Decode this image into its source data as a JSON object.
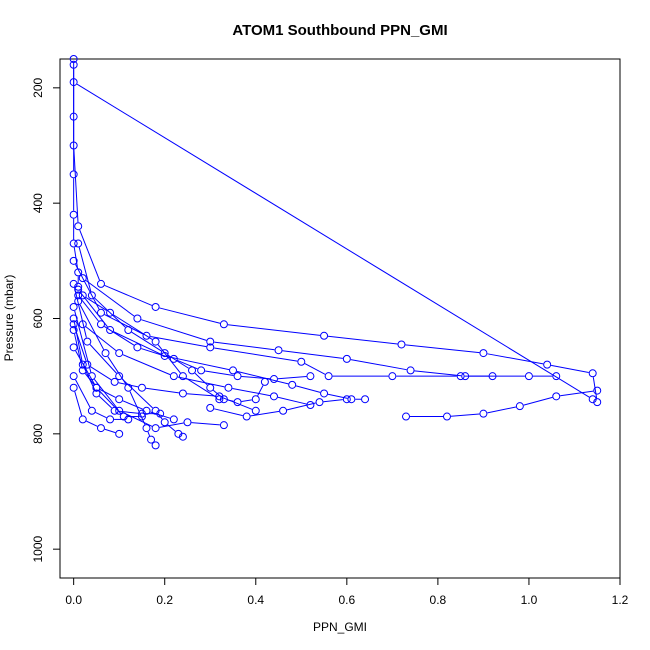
{
  "chart_data": {
    "type": "scatter",
    "title": "ATOM1 Southbound PPN_GMI",
    "xlabel": "PPN_GMI",
    "ylabel": "Pressure (mbar)",
    "xlim": [
      -0.03,
      1.2
    ],
    "ylim": [
      150,
      1050
    ],
    "y_reversed": true,
    "x_ticks": [
      "0.0",
      "0.2",
      "0.4",
      "0.6",
      "0.8",
      "1.0",
      "1.2"
    ],
    "y_ticks": [
      "200",
      "400",
      "600",
      "800",
      "1000"
    ],
    "marker": "open-circle",
    "series_color": "#0000ff",
    "grid": false,
    "series": [
      {
        "x": [
          0.0,
          0.0,
          0.0,
          0.0,
          0.0,
          0.01,
          0.01,
          0.02,
          0.08,
          0.18,
          0.24,
          0.32
        ],
        "y": [
          150,
          250,
          350,
          420,
          470,
          520,
          545,
          560,
          590,
          640,
          700,
          740
        ]
      },
      {
        "x": [
          0.0,
          0.0,
          0.01,
          0.06,
          0.18,
          0.33,
          0.55,
          0.72,
          0.9,
          1.04,
          1.14,
          1.15
        ],
        "y": [
          160,
          300,
          440,
          540,
          580,
          610,
          630,
          645,
          660,
          680,
          695,
          745
        ]
      },
      {
        "x": [
          0.0,
          1.14
        ],
        "y": [
          190,
          740
        ]
      },
      {
        "x": [
          0.01,
          0.04,
          0.12,
          0.2,
          0.26,
          0.3,
          0.33,
          0.36,
          0.4,
          0.42
        ],
        "y": [
          470,
          560,
          620,
          660,
          690,
          720,
          740,
          745,
          740,
          710
        ]
      },
      {
        "x": [
          0.0,
          0.06,
          0.16,
          0.3,
          0.5,
          0.56,
          0.7,
          0.85,
          1.0,
          1.06
        ],
        "y": [
          500,
          590,
          630,
          650,
          675,
          700,
          700,
          700,
          700,
          700
        ]
      },
      {
        "x": [
          0.0,
          0.03,
          0.1,
          0.18,
          0.2,
          0.23,
          0.24
        ],
        "y": [
          540,
          640,
          700,
          760,
          780,
          800,
          805
        ]
      },
      {
        "x": [
          0.01,
          0.07,
          0.12,
          0.16,
          0.17,
          0.18
        ],
        "y": [
          570,
          660,
          720,
          790,
          810,
          820
        ]
      },
      {
        "x": [
          0.0,
          0.02,
          0.05,
          0.09,
          0.15,
          0.19
        ],
        "y": [
          600,
          680,
          730,
          760,
          765,
          765
        ]
      },
      {
        "x": [
          0.0,
          0.04,
          0.1,
          0.18,
          0.25,
          0.33
        ],
        "y": [
          580,
          700,
          760,
          790,
          780,
          785
        ]
      },
      {
        "x": [
          0.01,
          0.08,
          0.2,
          0.35,
          0.48,
          0.55,
          0.61,
          0.64
        ],
        "y": [
          550,
          620,
          665,
          690,
          715,
          730,
          740,
          740
        ]
      },
      {
        "x": [
          0.02,
          0.14,
          0.3,
          0.45,
          0.6,
          0.74,
          0.86,
          0.92
        ],
        "y": [
          530,
          600,
          640,
          655,
          670,
          690,
          700,
          700
        ]
      },
      {
        "x": [
          0.0,
          0.05,
          0.11,
          0.15
        ],
        "y": [
          650,
          720,
          770,
          770
        ]
      },
      {
        "x": [
          0.0,
          0.04,
          0.08,
          0.12
        ],
        "y": [
          700,
          760,
          775,
          775
        ]
      },
      {
        "x": [
          0.0,
          0.02,
          0.06,
          0.1
        ],
        "y": [
          720,
          775,
          790,
          800
        ]
      },
      {
        "x": [
          0.3,
          0.38,
          0.46,
          0.54,
          0.6
        ],
        "y": [
          755,
          770,
          760,
          745,
          740
        ]
      },
      {
        "x": [
          0.73,
          0.82,
          0.9,
          0.98,
          1.06,
          1.15
        ],
        "y": [
          770,
          770,
          765,
          752,
          735,
          725
        ]
      },
      {
        "x": [
          0.0,
          0.03,
          0.09,
          0.15,
          0.24,
          0.32,
          0.4
        ],
        "y": [
          610,
          680,
          710,
          720,
          730,
          735,
          760
        ]
      },
      {
        "x": [
          0.01,
          0.06,
          0.14,
          0.22,
          0.28,
          0.36,
          0.44,
          0.52
        ],
        "y": [
          560,
          610,
          650,
          670,
          690,
          700,
          705,
          700
        ]
      },
      {
        "x": [
          0.0,
          0.02,
          0.05,
          0.1,
          0.16,
          0.22
        ],
        "y": [
          620,
          690,
          720,
          740,
          760,
          775
        ]
      },
      {
        "x": [
          0.02,
          0.1,
          0.22,
          0.34,
          0.44,
          0.52
        ],
        "y": [
          610,
          660,
          700,
          720,
          735,
          750
        ]
      }
    ]
  }
}
